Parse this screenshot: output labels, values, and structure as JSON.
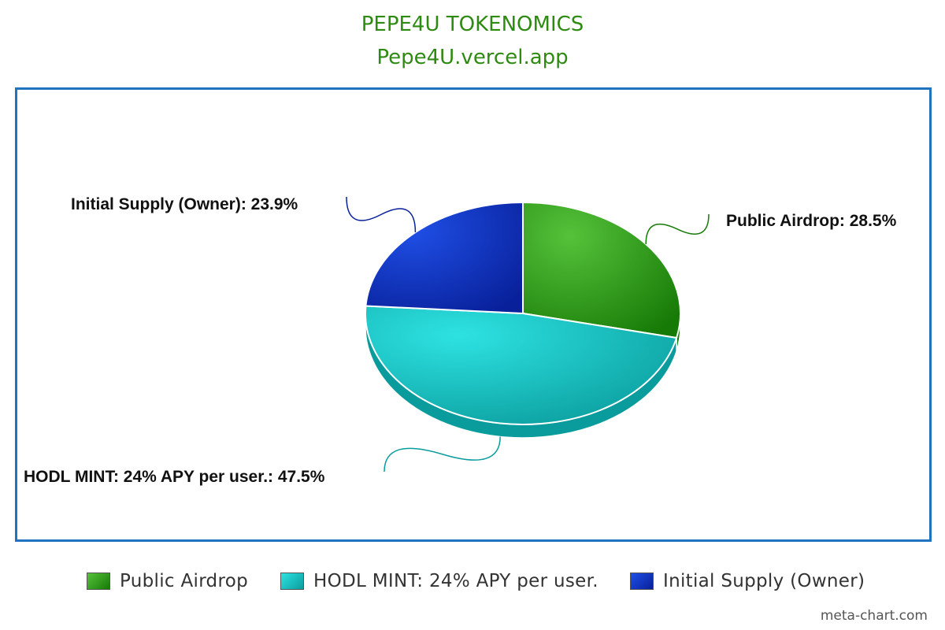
{
  "chart_data": {
    "type": "pie",
    "title": "PEPE4U TOKENOMICS",
    "subtitle": "Pepe4U.vercel.app",
    "slices": [
      {
        "name": "Public Airdrop",
        "value": 28.5,
        "label": "Public Airdrop: 28.5%",
        "color": "#2f9a1e",
        "color_light": "#55c23a",
        "color_dark": "#167a06"
      },
      {
        "name": "HODL MINT: 24% APY per user.",
        "value": 47.5,
        "label": "HODL MINT: 24% APY per user.: 47.5%",
        "color": "#11c4c6",
        "color_light": "#2ee2e2",
        "color_dark": "#0a9c9c"
      },
      {
        "name": "Initial Supply (Owner)",
        "value": 23.9,
        "label": "Initial Supply (Owner): 23.9%",
        "color": "#0f35b8",
        "color_light": "#1f4fe6",
        "color_dark": "#08209a"
      }
    ],
    "start_angle_deg": 0,
    "direction": "clockwise",
    "legend_position": "bottom",
    "three_d": true
  },
  "frame_color": "#1f73bf",
  "title_color": "#2e8b12",
  "watermark": "meta-chart.com"
}
